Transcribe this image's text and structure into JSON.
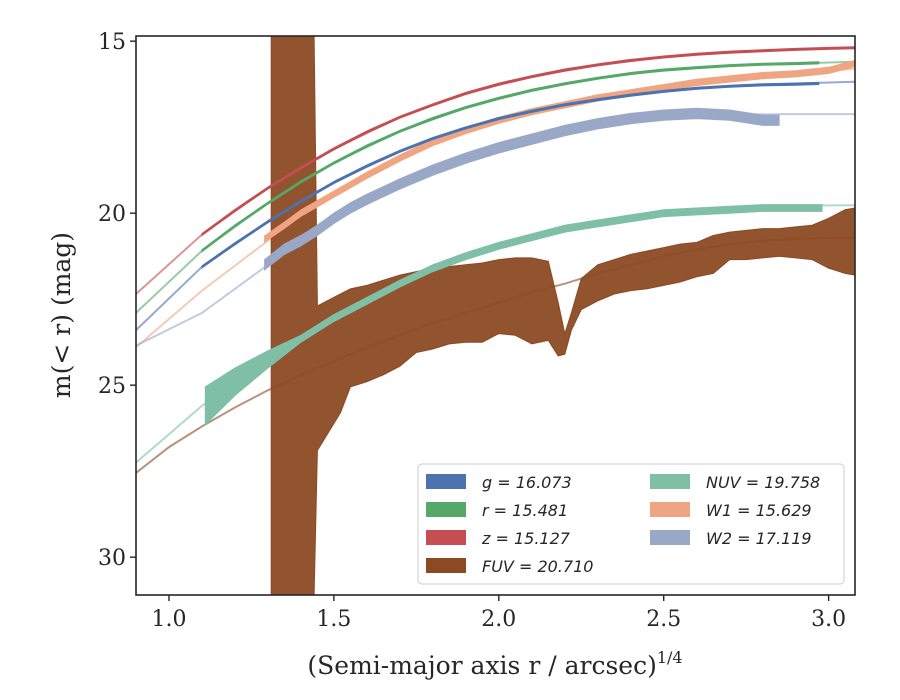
{
  "chart_data": {
    "type": "line",
    "title": "",
    "xlabel": "(Semi-major axis r / arcsec)",
    "xlabel_sup": "1/4",
    "ylabel": "m(< r) (mag)",
    "xlim": [
      0.9,
      3.08
    ],
    "ylim": [
      31.1,
      14.85
    ],
    "y_inverted": true,
    "x_ticks": [
      1.0,
      1.5,
      2.0,
      2.5,
      3.0
    ],
    "x_tick_labels": [
      "1.0",
      "1.5",
      "2.0",
      "2.5",
      "3.0"
    ],
    "y_ticks": [
      15,
      20,
      25,
      30
    ],
    "y_tick_labels": [
      "15",
      "20",
      "25",
      "30"
    ],
    "grid": false,
    "legend_position": "lower-right",
    "series": [
      {
        "name": "g = 16.073",
        "color": "#4c72b0",
        "total_mag": 16.073,
        "data_x": [
          1.1,
          1.2,
          1.3,
          1.4,
          1.5,
          1.6,
          1.7,
          1.8,
          1.9,
          2.0,
          2.1,
          2.2,
          2.3,
          2.4,
          2.5,
          2.6,
          2.7,
          2.8,
          2.9,
          2.97
        ],
        "data_y": [
          21.56,
          20.89,
          20.25,
          19.66,
          19.11,
          18.63,
          18.2,
          17.83,
          17.52,
          17.25,
          17.04,
          16.85,
          16.7,
          16.57,
          16.46,
          16.37,
          16.31,
          16.27,
          16.25,
          16.23
        ],
        "data_width": 0.06,
        "model_x": [
          0.9,
          1.1,
          1.3,
          1.5,
          1.7,
          1.9,
          2.1,
          2.3,
          2.5,
          2.7,
          2.9,
          3.08
        ],
        "model_y": [
          23.4,
          21.56,
          20.25,
          19.11,
          18.2,
          17.52,
          17.04,
          16.7,
          16.46,
          16.31,
          16.23,
          16.18
        ]
      },
      {
        "name": "r = 15.481",
        "color": "#55a868",
        "total_mag": 15.481,
        "data_x": [
          1.1,
          1.2,
          1.3,
          1.4,
          1.5,
          1.6,
          1.7,
          1.8,
          1.9,
          2.0,
          2.1,
          2.2,
          2.3,
          2.4,
          2.5,
          2.6,
          2.7,
          2.8,
          2.9,
          2.97
        ],
        "data_y": [
          21.09,
          20.37,
          19.71,
          19.09,
          18.54,
          18.05,
          17.62,
          17.25,
          16.93,
          16.66,
          16.43,
          16.24,
          16.08,
          15.94,
          15.84,
          15.77,
          15.71,
          15.67,
          15.65,
          15.63
        ],
        "data_width": 0.06,
        "model_x": [
          0.9,
          1.1,
          1.3,
          1.5,
          1.7,
          1.9,
          2.1,
          2.3,
          2.5,
          2.7,
          2.9,
          3.08
        ],
        "model_y": [
          22.9,
          21.09,
          19.71,
          18.54,
          17.62,
          16.93,
          16.43,
          16.08,
          15.84,
          15.71,
          15.65,
          15.6
        ]
      },
      {
        "name": "z = 15.127",
        "color": "#c44e52",
        "total_mag": 15.127,
        "data_x": [
          1.1,
          1.2,
          1.3,
          1.4,
          1.5,
          1.6,
          1.7,
          1.8,
          1.9,
          2.0,
          2.1,
          2.2,
          2.3,
          2.4,
          2.5,
          2.6,
          2.7,
          2.8,
          2.9,
          3.0,
          3.08
        ],
        "data_y": [
          20.62,
          19.92,
          19.27,
          18.68,
          18.13,
          17.64,
          17.21,
          16.85,
          16.52,
          16.25,
          16.03,
          15.84,
          15.69,
          15.56,
          15.46,
          15.38,
          15.32,
          15.28,
          15.24,
          15.21,
          15.19
        ],
        "data_width": 0.06,
        "model_x": [
          0.9,
          1.1,
          1.3,
          1.5,
          1.7,
          1.9,
          2.1,
          2.3,
          2.5,
          2.7,
          2.9,
          3.08
        ],
        "model_y": [
          22.35,
          20.62,
          19.27,
          18.13,
          17.21,
          16.52,
          16.03,
          15.69,
          15.46,
          15.32,
          15.24,
          15.19
        ]
      },
      {
        "name": "FUV = 20.710",
        "color": "#8c4a24",
        "total_mag": 20.71,
        "band_x": [
          1.31,
          1.44,
          1.45,
          1.52,
          1.55,
          1.6,
          1.65,
          1.7,
          1.75,
          1.8,
          1.85,
          1.9,
          1.95,
          2.0,
          2.05,
          2.1,
          2.15,
          2.18,
          2.2,
          2.22,
          2.25,
          2.3,
          2.35,
          2.4,
          2.45,
          2.5,
          2.55,
          2.6,
          2.65,
          2.7,
          2.75,
          2.8,
          2.85,
          2.9,
          2.95,
          3.0,
          3.05,
          3.08
        ],
        "band_lo": [
          14.85,
          14.85,
          22.7,
          22.35,
          22.2,
          22.1,
          21.95,
          21.8,
          21.7,
          21.6,
          21.55,
          21.5,
          21.45,
          21.35,
          21.3,
          21.3,
          21.4,
          22.6,
          23.5,
          22.9,
          21.9,
          21.5,
          21.35,
          21.2,
          21.1,
          21.0,
          20.9,
          20.85,
          20.65,
          20.55,
          20.5,
          20.45,
          20.45,
          20.4,
          20.35,
          20.15,
          19.9,
          19.85
        ],
        "band_hi": [
          31.1,
          31.1,
          26.9,
          25.8,
          25.05,
          24.9,
          24.7,
          24.45,
          24.05,
          23.95,
          23.8,
          23.75,
          23.75,
          23.5,
          23.55,
          23.8,
          23.7,
          24.15,
          24.1,
          23.4,
          22.8,
          22.55,
          22.35,
          22.25,
          22.2,
          22.1,
          22.0,
          21.85,
          21.75,
          21.35,
          21.35,
          21.3,
          21.25,
          21.3,
          21.35,
          21.6,
          21.75,
          21.8
        ],
        "model_x": [
          0.9,
          1.0,
          1.1,
          1.2,
          1.3,
          1.4,
          1.5,
          1.6,
          1.7,
          1.8,
          1.9,
          2.0,
          2.1,
          2.2,
          2.3,
          2.4,
          2.5,
          2.6,
          2.7,
          2.8,
          2.9,
          3.0,
          3.08
        ],
        "model_y": [
          27.55,
          26.8,
          26.2,
          25.65,
          25.15,
          24.7,
          24.3,
          23.9,
          23.55,
          23.2,
          22.9,
          22.6,
          22.3,
          22.05,
          21.75,
          21.5,
          21.25,
          21.05,
          20.9,
          20.8,
          20.75,
          20.72,
          20.71
        ]
      },
      {
        "name": "NUV = 19.758",
        "color": "#7fbfa6",
        "total_mag": 19.758,
        "data_x": [
          1.11,
          1.2,
          1.3,
          1.4,
          1.5,
          1.6,
          1.7,
          1.8,
          1.9,
          2.0,
          2.1,
          2.2,
          2.3,
          2.4,
          2.5,
          2.6,
          2.7,
          2.8,
          2.9,
          2.98
        ],
        "data_y": [
          25.6,
          24.9,
          24.25,
          23.65,
          23.05,
          22.55,
          22.05,
          21.6,
          21.25,
          20.95,
          20.7,
          20.45,
          20.3,
          20.15,
          20.0,
          19.95,
          19.9,
          19.85,
          19.85,
          19.85
        ],
        "data_width_start": 1.1,
        "data_width_end": 0.2,
        "model_x": [
          0.9,
          1.1,
          1.3,
          1.5,
          1.7,
          1.9,
          2.1,
          2.3,
          2.5,
          2.7,
          2.9,
          3.08
        ],
        "model_y": [
          27.25,
          25.6,
          24.25,
          23.05,
          22.05,
          21.25,
          20.7,
          20.3,
          20.0,
          19.85,
          19.78,
          19.77
        ]
      },
      {
        "name": "W1 = 15.629",
        "color": "#f0a582",
        "total_mag": 15.629,
        "data_x": [
          1.29,
          1.35,
          1.4,
          1.5,
          1.6,
          1.7,
          1.8,
          1.9,
          2.0,
          2.1,
          2.2,
          2.3,
          2.4,
          2.5,
          2.6,
          2.7,
          2.8,
          2.9,
          3.0,
          3.08
        ],
        "data_y": [
          20.75,
          20.35,
          20.0,
          19.45,
          18.9,
          18.4,
          17.95,
          17.6,
          17.3,
          17.05,
          16.85,
          16.65,
          16.5,
          16.35,
          16.2,
          16.1,
          16.0,
          15.95,
          15.85,
          15.65
        ],
        "data_width": 0.18,
        "model_x": [
          0.9,
          1.1,
          1.3,
          1.5,
          1.7,
          1.9,
          2.1,
          2.3,
          2.5,
          2.7,
          2.9,
          3.08
        ],
        "model_y": [
          23.9,
          22.25,
          20.8,
          19.45,
          18.4,
          17.6,
          17.05,
          16.65,
          16.35,
          16.1,
          15.95,
          15.8
        ]
      },
      {
        "name": "W2 = 17.119",
        "color": "#9aa8c8",
        "total_mag": 17.119,
        "data_x": [
          1.29,
          1.35,
          1.4,
          1.45,
          1.5,
          1.55,
          1.6,
          1.7,
          1.8,
          1.9,
          2.0,
          2.1,
          2.2,
          2.3,
          2.4,
          2.5,
          2.6,
          2.7,
          2.8,
          2.85
        ],
        "data_y": [
          21.5,
          21.05,
          20.8,
          20.5,
          20.15,
          19.85,
          19.6,
          19.15,
          18.75,
          18.4,
          18.1,
          17.85,
          17.6,
          17.4,
          17.25,
          17.15,
          17.1,
          17.15,
          17.3,
          17.3
        ],
        "data_width": 0.3,
        "model_x": [
          0.9,
          1.1,
          1.3,
          1.5,
          1.7,
          1.9,
          2.1,
          2.3,
          2.5,
          2.7,
          2.9,
          3.08
        ],
        "model_y": [
          23.85,
          22.9,
          21.5,
          20.15,
          19.15,
          18.4,
          17.85,
          17.4,
          17.15,
          17.13,
          17.12,
          17.12
        ]
      }
    ],
    "legend": {
      "columns": [
        [
          "g",
          "r",
          "z",
          "FUV"
        ],
        [
          "NUV",
          "W1",
          "W2"
        ]
      ],
      "labels": {
        "g": "g = 16.073",
        "r": "r = 15.481",
        "z": "z = 15.127",
        "FUV": "FUV = 20.710",
        "NUV": "NUV = 19.758",
        "W1": "W1 = 15.629",
        "W2": "W2 = 17.119"
      }
    }
  }
}
